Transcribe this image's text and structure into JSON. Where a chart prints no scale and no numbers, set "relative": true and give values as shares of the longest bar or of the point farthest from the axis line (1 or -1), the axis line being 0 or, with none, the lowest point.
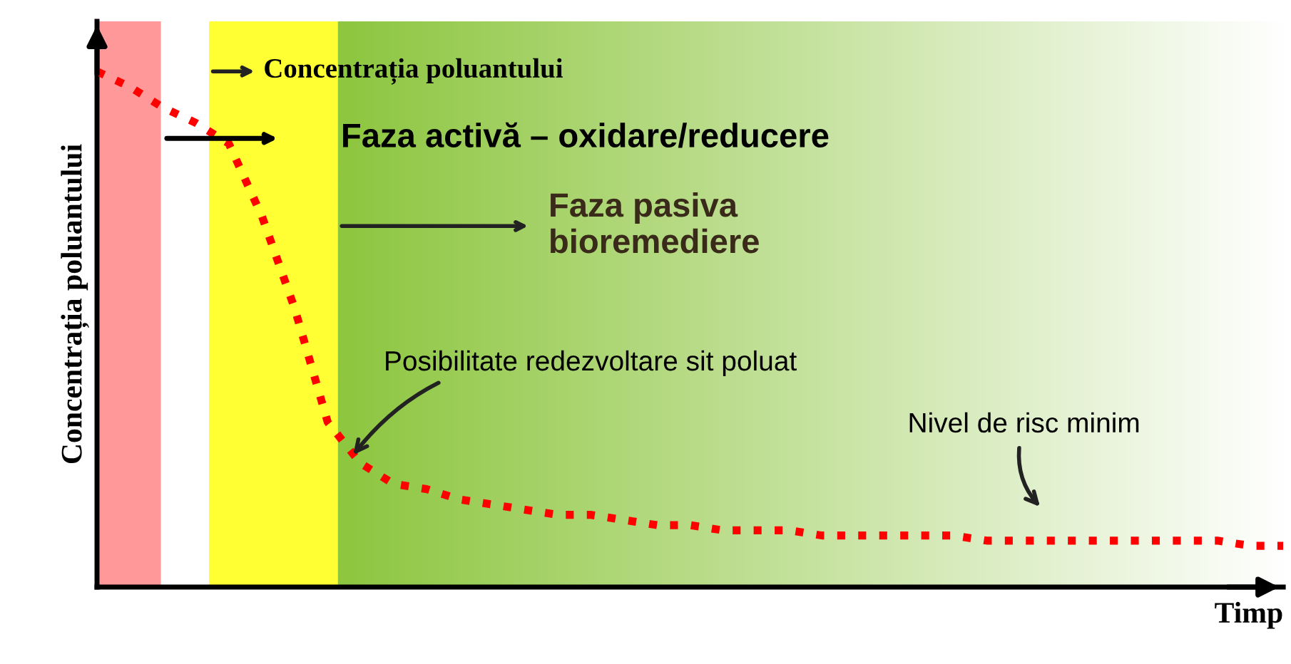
{
  "chart_data": {
    "type": "line",
    "relative": true,
    "xlabel": "Timp",
    "ylabel": "Concentrația poluantului",
    "categories": [
      null,
      null,
      null,
      null,
      null,
      null,
      null,
      null,
      null,
      null,
      null,
      null,
      null,
      null,
      null,
      null,
      null,
      null,
      null,
      null,
      null,
      null,
      null,
      null,
      null,
      null,
      null,
      null,
      null,
      null,
      null,
      null,
      null,
      null,
      null,
      null,
      null
    ],
    "series": [
      {
        "color": "#ff0000",
        "line_style": "dotted",
        "values": [
          1.0,
          0.97,
          0.93,
          0.9,
          0.86,
          0.72,
          0.54,
          0.32,
          0.24,
          0.2,
          0.19,
          0.17,
          0.16,
          0.15,
          0.14,
          0.14,
          0.13,
          0.12,
          0.12,
          0.11,
          0.11,
          0.11,
          0.1,
          0.1,
          0.1,
          0.1,
          0.1,
          0.09,
          0.09,
          0.09,
          0.09,
          0.09,
          0.09,
          0.09,
          0.09,
          0.08,
          0.08
        ]
      }
    ],
    "annotations": [
      "Concentrația poluantului",
      "Faza activă – oxidare/reducere",
      "Faza pasiva\nbioremediere",
      "Posibilitate redezvoltare sit poluat",
      "Nivel de risc minim"
    ],
    "grid": false,
    "legend": false,
    "marker": "none"
  }
}
